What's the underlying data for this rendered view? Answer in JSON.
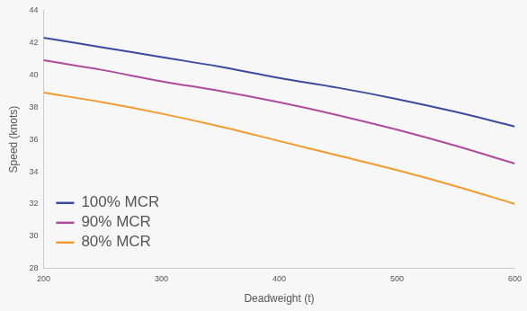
{
  "chart_data": {
    "type": "line",
    "x_label": "Deadweight (t)",
    "y_label": "Speed (knots)",
    "xlim": [
      200,
      600
    ],
    "xticks": [
      200,
      300,
      400,
      500,
      600
    ],
    "ylim": [
      28,
      44
    ],
    "yticks": [
      28,
      30,
      32,
      34,
      36,
      38,
      40,
      42,
      44
    ],
    "grid": false,
    "legend": "lower left",
    "x": [
      200,
      250,
      300,
      350,
      400,
      450,
      500,
      550,
      600
    ],
    "series": [
      {
        "name": "100% MCR",
        "color": "#3a4ba0",
        "values": [
          42.3,
          41.7,
          41.1,
          40.5,
          39.8,
          39.2,
          38.5,
          37.7,
          36.8
        ]
      },
      {
        "name": "90% MCR",
        "color": "#b04a9c",
        "values": [
          40.9,
          40.3,
          39.6,
          39.0,
          38.3,
          37.5,
          36.6,
          35.6,
          34.5
        ]
      },
      {
        "name": "80% MCR",
        "color": "#f39a2c",
        "values": [
          38.9,
          38.3,
          37.6,
          36.8,
          35.9,
          35.0,
          34.1,
          33.1,
          32.0
        ]
      }
    ]
  }
}
